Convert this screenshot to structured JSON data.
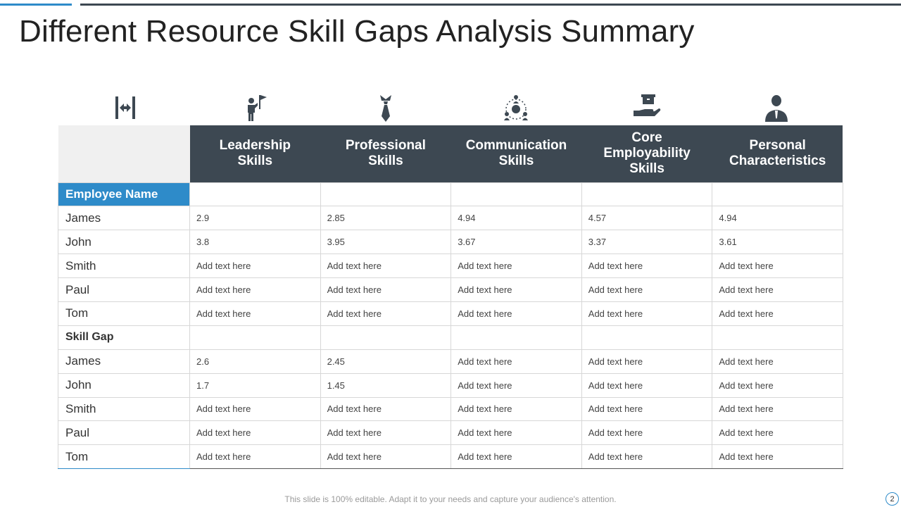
{
  "title": "Different Resource Skill Gaps Analysis Summary",
  "icons": [
    "horizontal-arrows-icon",
    "person-flag-icon",
    "tie-icon",
    "network-people-icon",
    "hand-box-icon",
    "businessman-icon"
  ],
  "columns": [
    {
      "line1": "Leadership",
      "line2": "Skills",
      "line3": ""
    },
    {
      "line1": "Professional",
      "line2": "Skills",
      "line3": ""
    },
    {
      "line1": "Communication",
      "line2": "Skills",
      "line3": ""
    },
    {
      "line1": "Core",
      "line2": "Employability",
      "line3": "Skills"
    },
    {
      "line1": "Personal",
      "line2": "Characteristics",
      "line3": ""
    }
  ],
  "section1_label": "Employee Name",
  "section2_label": "Skill Gap",
  "employee_rows": [
    {
      "name": "James",
      "values": [
        "2.9",
        "2.85",
        "4.94",
        "4.57",
        "4.94"
      ]
    },
    {
      "name": "John",
      "values": [
        "3.8",
        "3.95",
        "3.67",
        "3.37",
        "3.61"
      ]
    },
    {
      "name": "Smith",
      "values": [
        "Add text here",
        "Add text here",
        "Add text here",
        "Add text here",
        "Add text here"
      ]
    },
    {
      "name": "Paul",
      "values": [
        "Add text here",
        "Add text here",
        "Add text here",
        "Add text here",
        "Add text here"
      ]
    },
    {
      "name": "Tom",
      "values": [
        "Add text here",
        "Add text here",
        "Add text here",
        "Add text here",
        "Add text here"
      ]
    }
  ],
  "gap_rows": [
    {
      "name": "James",
      "values": [
        "2.6",
        "2.45",
        "Add text here",
        "Add text here",
        "Add text here"
      ]
    },
    {
      "name": "John",
      "values": [
        "1.7",
        "1.45",
        "Add text here",
        "Add text here",
        "Add text here"
      ]
    },
    {
      "name": "Smith",
      "values": [
        "Add text here",
        "Add text here",
        "Add text here",
        "Add text here",
        "Add text here"
      ]
    },
    {
      "name": "Paul",
      "values": [
        "Add text here",
        "Add text here",
        "Add text here",
        "Add text here",
        "Add text here"
      ]
    },
    {
      "name": "Tom",
      "values": [
        "Add text here",
        "Add text here",
        "Add text here",
        "Add text here",
        "Add text here"
      ]
    }
  ],
  "footer": "This slide is 100% editable. Adapt it to your needs and capture your audience's attention.",
  "page_number": "2",
  "colors": {
    "accent": "#2e8bc9",
    "header_dark": "#3d4852",
    "corner_bg": "#f0f0f0"
  }
}
